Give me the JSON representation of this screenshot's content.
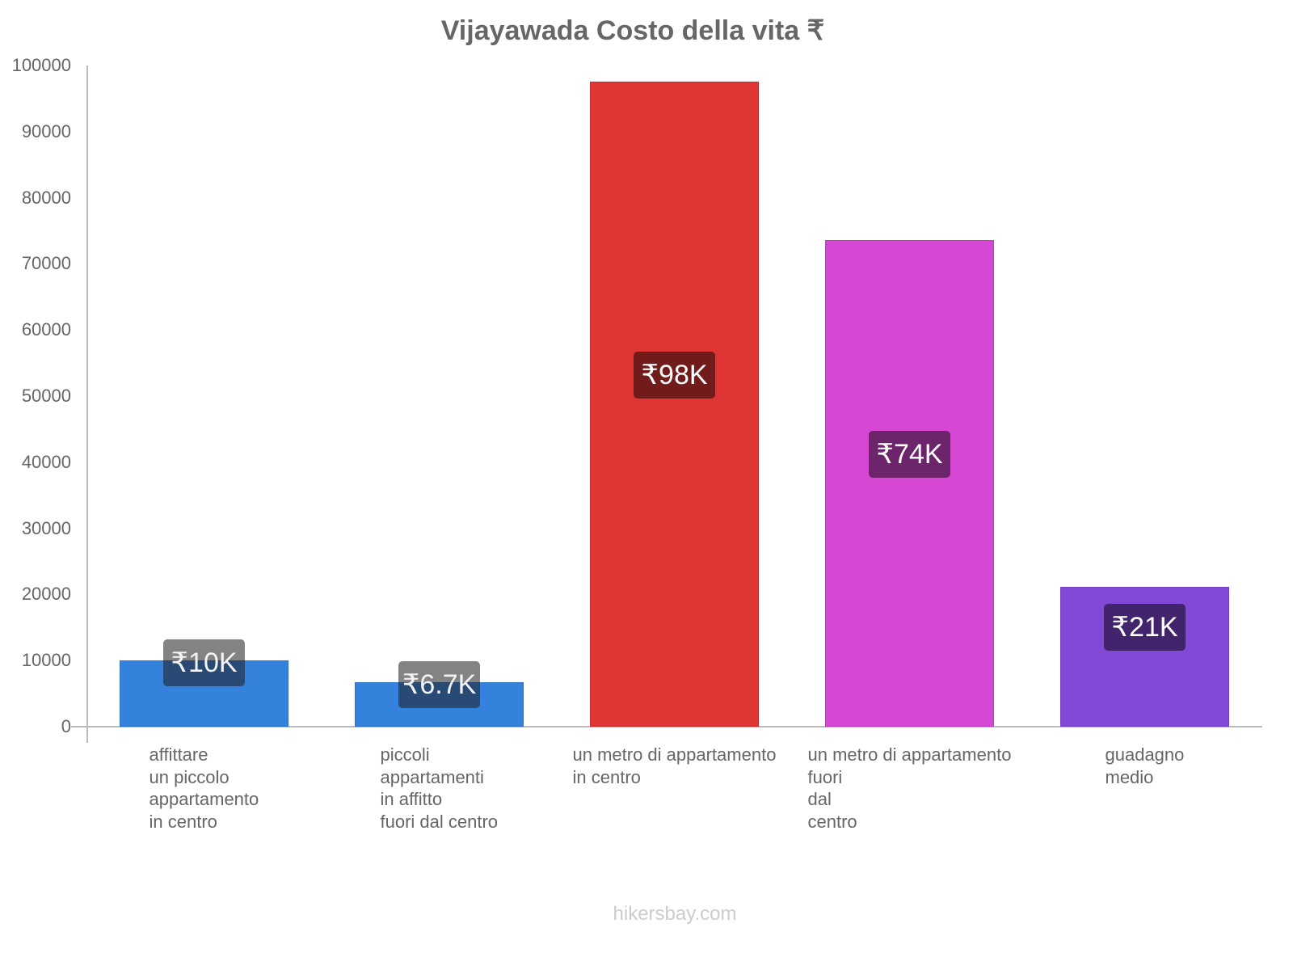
{
  "chart_data": {
    "type": "bar",
    "title": "Vijayawada Costo della vita ₹",
    "xlabel": "",
    "ylabel": "",
    "ylim": [
      0,
      100000
    ],
    "yticks": [
      0,
      10000,
      20000,
      30000,
      40000,
      50000,
      60000,
      70000,
      80000,
      90000,
      100000
    ],
    "grid": false,
    "legend": null,
    "categories": [
      "affittare un piccolo appartamento in centro",
      "piccoli appartamenti in affitto fuori dal centro",
      "un metro di appartamento in centro",
      "un metro di appartamento fuori dal centro",
      "guadagno medio"
    ],
    "values": [
      10000,
      6700,
      97600,
      73600,
      21200
    ],
    "data_labels": [
      "₹10K",
      "₹6.7K",
      "₹98K",
      "₹74K",
      "₹21K"
    ],
    "colors": [
      "#3582dd",
      "#3582dd",
      "#e03535",
      "#d648d3",
      "#8249d6"
    ]
  },
  "title": "Vijayawada Costo della vita ₹",
  "y_axis": {
    "ticks": [
      "0",
      "10000",
      "20000",
      "30000",
      "40000",
      "50000",
      "60000",
      "70000",
      "80000",
      "90000",
      "100000"
    ]
  },
  "bars": [
    {
      "label_lines": "affittare\nun piccolo\nappartamento\nin centro",
      "value_label": "₹10K",
      "color": "#3582dd",
      "badge": "rgba(20,30,50,0.55)"
    },
    {
      "label_lines": "piccoli\nappartamenti\nin affitto\nfuori dal centro",
      "value_label": "₹6.7K",
      "color": "#3582dd",
      "badge": "rgba(20,30,50,0.55)"
    },
    {
      "label_lines": "un metro di appartamento\nin centro",
      "value_label": "₹98K",
      "color": "#e03535",
      "badge": "#721b1b"
    },
    {
      "label_lines": "un metro di appartamento\nfuori\ndal\ncentro",
      "value_label": "₹74K",
      "color": "#d648d3",
      "badge": "#6c246b"
    },
    {
      "label_lines": "guadagno\nmedio",
      "value_label": "₹21K",
      "color": "#8249d6",
      "badge": "#41246b"
    }
  ],
  "footer": "hikersbay.com"
}
